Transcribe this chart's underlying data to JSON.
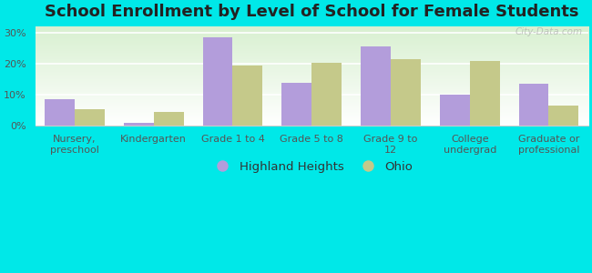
{
  "title": "School Enrollment by Level of School for Female Students",
  "categories": [
    "Nursery,\npreschool",
    "Kindergarten",
    "Grade 1 to 4",
    "Grade 5 to 8",
    "Grade 9 to\n12",
    "College\nundergrad",
    "Graduate or\nprofessional"
  ],
  "highland_heights": [
    8.5,
    1.0,
    28.5,
    14.0,
    25.5,
    10.0,
    13.5
  ],
  "ohio": [
    5.5,
    4.5,
    19.5,
    20.5,
    21.5,
    21.0,
    6.5
  ],
  "highland_color": "#b39ddb",
  "ohio_color": "#c5c98a",
  "background_color": "#00e8e8",
  "ylim": [
    0,
    32
  ],
  "yticks": [
    0,
    10,
    20,
    30
  ],
  "legend_labels": [
    "Highland Heights",
    "Ohio"
  ],
  "bar_width": 0.38,
  "title_fontsize": 13,
  "tick_fontsize": 8,
  "legend_fontsize": 9.5,
  "watermark": "City-Data.com"
}
